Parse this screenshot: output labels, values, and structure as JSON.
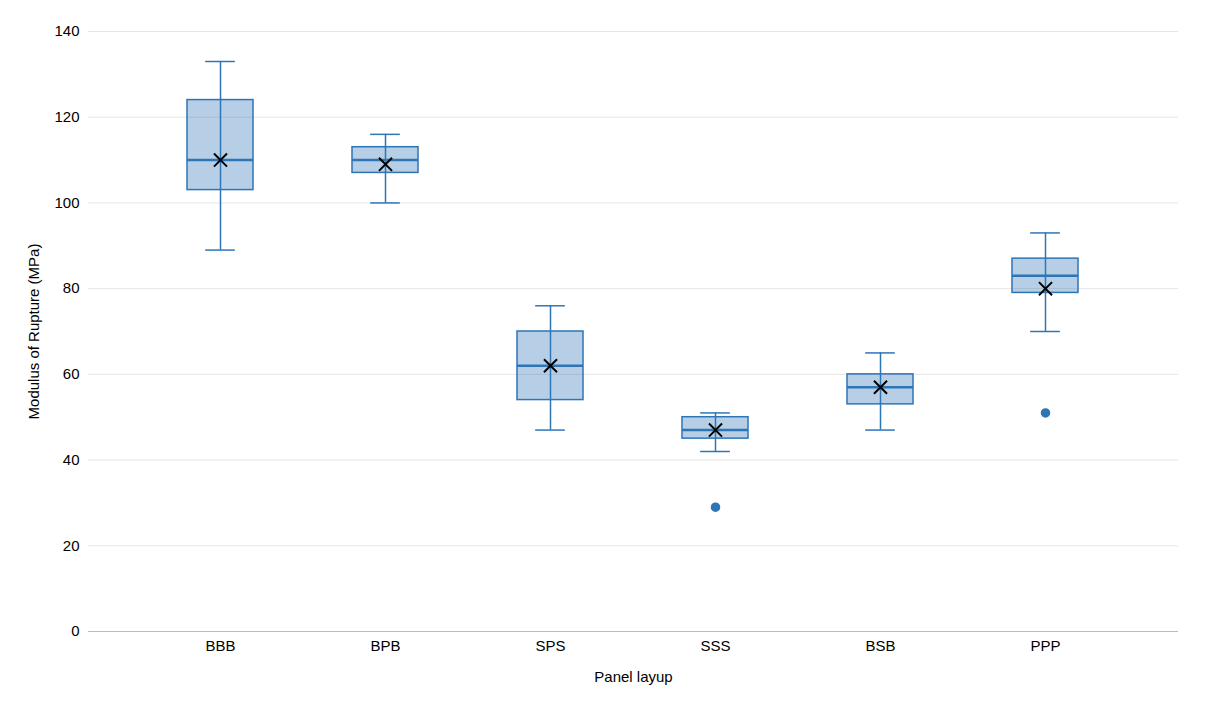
{
  "chart_data": {
    "type": "box",
    "xlabel": "Panel layup",
    "ylabel": "Modulus of Rupture (MPa)",
    "categories": [
      "BBB",
      "BPB",
      "SPS",
      "SSS",
      "BSB",
      "PPP"
    ],
    "boxes": [
      {
        "whisker_low": 89,
        "q1": 103,
        "median": 110,
        "q3": 124,
        "whisker_high": 133,
        "mean": 110,
        "outliers": []
      },
      {
        "whisker_low": 100,
        "q1": 107,
        "median": 110,
        "q3": 113,
        "whisker_high": 116,
        "mean": 109,
        "outliers": []
      },
      {
        "whisker_low": 47,
        "q1": 54,
        "median": 62,
        "q3": 70,
        "whisker_high": 76,
        "mean": 62,
        "outliers": []
      },
      {
        "whisker_low": 42,
        "q1": 45,
        "median": 47,
        "q3": 50,
        "whisker_high": 51,
        "mean": 47,
        "outliers": [
          29
        ]
      },
      {
        "whisker_low": 47,
        "q1": 53,
        "median": 57,
        "q3": 60,
        "whisker_high": 65,
        "mean": 57,
        "outliers": []
      },
      {
        "whisker_low": 70,
        "q1": 79,
        "median": 83,
        "q3": 87,
        "whisker_high": 93,
        "mean": 80,
        "outliers": [
          51
        ]
      }
    ],
    "ylim": [
      0,
      140
    ],
    "yticks": [
      0,
      20,
      40,
      60,
      80,
      100,
      120,
      140
    ],
    "color": "#2E75B6",
    "marker": "x",
    "grid": true
  }
}
